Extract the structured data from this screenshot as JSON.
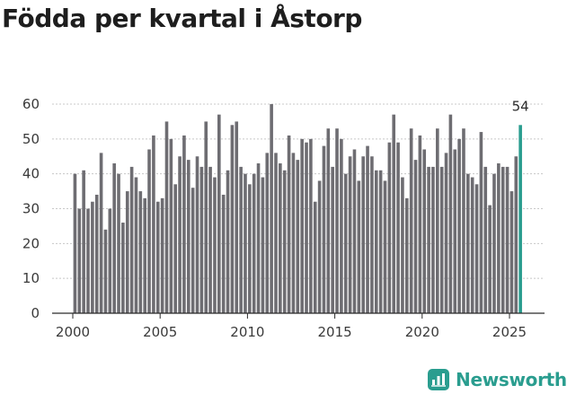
{
  "title": "Födda per kvartal i Åstorp",
  "brand": {
    "name": "Newsworthy",
    "icon": "newsworthy-logo-icon",
    "color": "#2a9d8f"
  },
  "chart_data": {
    "type": "bar",
    "title": "Födda per kvartal i Åstorp",
    "xlabel": "",
    "ylabel": "",
    "ylim": [
      0,
      60
    ],
    "yticks": [
      0,
      10,
      20,
      30,
      40,
      50,
      60
    ],
    "xticks": [
      2000,
      2005,
      2010,
      2015,
      2020,
      2025
    ],
    "grid": true,
    "bar_color": "#6e6d72",
    "highlight_color": "#2a9d8f",
    "start": {
      "year": 2000,
      "quarter": 1
    },
    "values": [
      40,
      30,
      41,
      30,
      32,
      34,
      46,
      24,
      30,
      43,
      40,
      26,
      35,
      42,
      39,
      35,
      33,
      47,
      51,
      32,
      33,
      55,
      50,
      37,
      45,
      51,
      44,
      36,
      45,
      42,
      55,
      42,
      39,
      57,
      34,
      41,
      54,
      55,
      42,
      40,
      37,
      40,
      43,
      39,
      46,
      60,
      46,
      43,
      41,
      51,
      46,
      44,
      50,
      49,
      50,
      32,
      38,
      48,
      53,
      42,
      53,
      50,
      40,
      45,
      47,
      38,
      45,
      48,
      45,
      41,
      41,
      38,
      49,
      57,
      49,
      39,
      33,
      53,
      44,
      51,
      47,
      42,
      42,
      53,
      42,
      46,
      57,
      47,
      50,
      53,
      40,
      39,
      37,
      52,
      42,
      31,
      40,
      43,
      42,
      42,
      35,
      45,
      54
    ],
    "highlight_label": "54"
  }
}
